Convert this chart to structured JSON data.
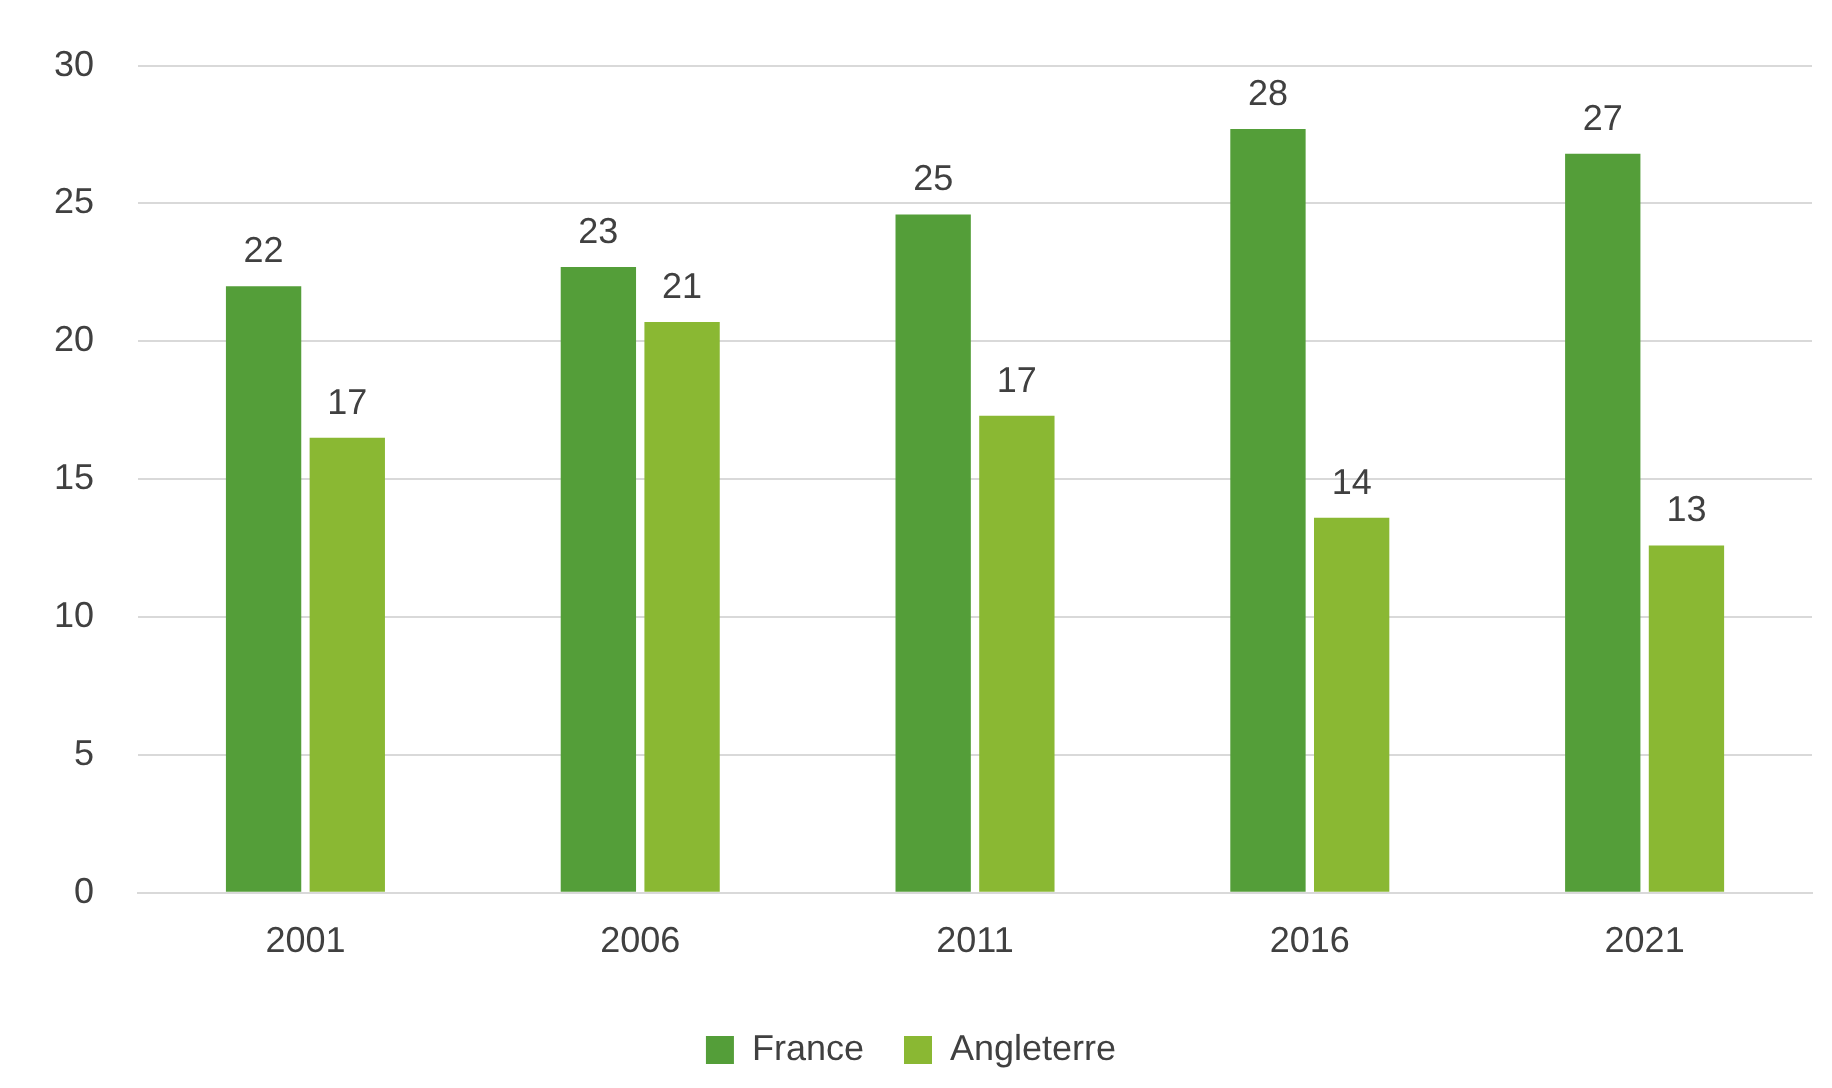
{
  "chart_data": {
    "type": "bar",
    "categories": [
      "2001",
      "2006",
      "2011",
      "2016",
      "2021"
    ],
    "series": [
      {
        "name": "France",
        "color": "#549e39",
        "values": [
          22.0,
          22.7,
          24.6,
          27.7,
          26.8
        ],
        "value_labels": [
          "22",
          "23",
          "25",
          "28",
          "27"
        ]
      },
      {
        "name": "Angleterre",
        "color": "#8ab833",
        "values": [
          16.5,
          20.7,
          17.3,
          13.6,
          12.6
        ],
        "value_labels": [
          "17",
          "21",
          "17",
          "14",
          "13"
        ]
      }
    ],
    "ylim": [
      0,
      30
    ],
    "yticks": [
      0,
      5,
      10,
      15,
      20,
      25,
      30
    ],
    "grid": "y",
    "legend": "bottom"
  }
}
